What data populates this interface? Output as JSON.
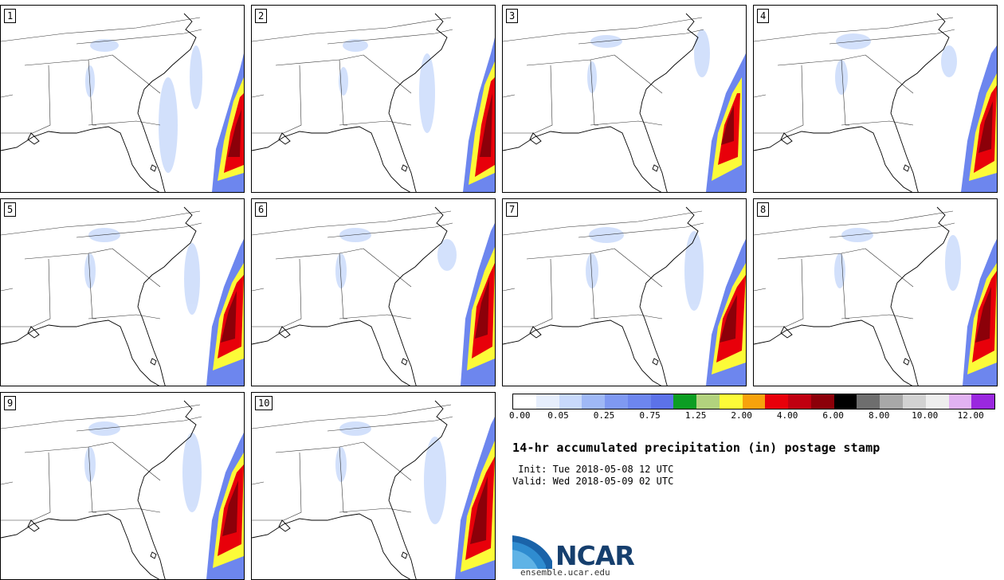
{
  "panels": [
    {
      "label": "1"
    },
    {
      "label": "2"
    },
    {
      "label": "3"
    },
    {
      "label": "4"
    },
    {
      "label": "5"
    },
    {
      "label": "6"
    },
    {
      "label": "7"
    },
    {
      "label": "8"
    },
    {
      "label": "9"
    },
    {
      "label": "10"
    }
  ],
  "colorbar": {
    "colors": [
      "#ffffff",
      "#e6eefc",
      "#c8d9fb",
      "#9fb8f6",
      "#7f99f2",
      "#6d86ee",
      "#5c72e8",
      "#0c9e23",
      "#b2d27e",
      "#fcfb38",
      "#f7a20c",
      "#e8000a",
      "#c00010",
      "#8c0009",
      "#000000",
      "#6e6e6e",
      "#a8a8a8",
      "#d2d2d2",
      "#eeeeee",
      "#e1b2f2",
      "#9a28df"
    ],
    "tick_labels": [
      "0.00",
      "0.05",
      "0.25",
      "0.75",
      "1.25",
      "2.00",
      "4.00",
      "6.00",
      "8.00",
      "10.00",
      "12.00"
    ]
  },
  "title": "14-hr accumulated precipitation (in) postage stamp",
  "init": " Init: Tue 2018-05-08 12 UTC",
  "valid": "Valid: Wed 2018-05-09 02 UTC",
  "logo": {
    "text": "NCAR",
    "site": "ensemble.ucar.edu"
  }
}
